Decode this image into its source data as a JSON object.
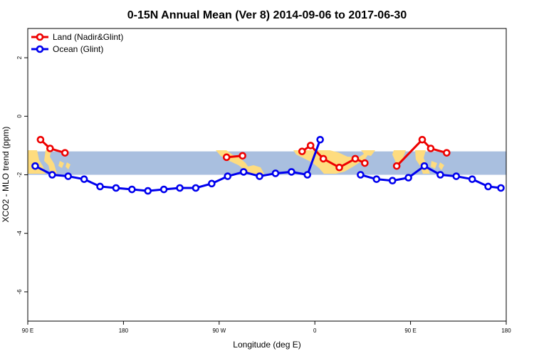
{
  "chart_data": {
    "type": "line",
    "title": "0-15N Annual Mean (Ver 8)   2014-09-06 to 2017-06-30",
    "xlabel": "Longitude (deg E)",
    "ylabel": "XCO2 - MLO trend (ppm)",
    "xlim": [
      90,
      540
    ],
    "ylim": [
      -7,
      3
    ],
    "x_ticks": [
      {
        "value": 90,
        "label": "90 E"
      },
      {
        "value": 180,
        "label": "180"
      },
      {
        "value": 270,
        "label": "90 W"
      },
      {
        "value": 360,
        "label": "0"
      },
      {
        "value": 450,
        "label": "90 E"
      },
      {
        "value": 540,
        "label": "180"
      }
    ],
    "y_ticks": [
      {
        "value": -6,
        "label": "-6"
      },
      {
        "value": -4,
        "label": "-4"
      },
      {
        "value": -2,
        "label": "-2"
      },
      {
        "value": 0,
        "label": "0"
      },
      {
        "value": 2,
        "label": "2"
      }
    ],
    "band": {
      "y_min": -2.0,
      "y_max": -1.2,
      "color": "#a9bfdf"
    },
    "land_color": "#fedc7f",
    "legend_position": "top-left",
    "series": [
      {
        "name": "Land (Nadir&Glint)",
        "color": "#ee0000",
        "segments": [
          [
            [
              102,
              -0.8
            ],
            [
              111,
              -1.1
            ],
            [
              125,
              -1.25
            ]
          ],
          [
            [
              277,
              -1.4
            ],
            [
              292,
              -1.35
            ]
          ],
          [
            [
              348,
              -1.2
            ],
            [
              356,
              -1.0
            ],
            [
              368,
              -1.45
            ],
            [
              383,
              -1.75
            ],
            [
              398,
              -1.45
            ],
            [
              407,
              -1.6
            ]
          ],
          [
            [
              437,
              -1.7
            ],
            [
              461,
              -0.8
            ],
            [
              469,
              -1.1
            ],
            [
              484,
              -1.25
            ]
          ]
        ]
      },
      {
        "name": "Ocean (Glint)",
        "color": "#0000ee",
        "segments": [
          [
            [
              97,
              -1.7
            ],
            [
              113,
              -2.0
            ],
            [
              128,
              -2.05
            ],
            [
              143,
              -2.15
            ],
            [
              158,
              -2.4
            ],
            [
              173,
              -2.45
            ],
            [
              188,
              -2.5
            ],
            [
              203,
              -2.55
            ],
            [
              218,
              -2.5
            ],
            [
              233,
              -2.45
            ],
            [
              248,
              -2.45
            ],
            [
              263,
              -2.3
            ],
            [
              278,
              -2.05
            ],
            [
              293,
              -1.9
            ],
            [
              308,
              -2.05
            ],
            [
              323,
              -1.95
            ],
            [
              338,
              -1.9
            ],
            [
              353,
              -2.0
            ],
            [
              365,
              -0.8
            ]
          ],
          [
            [
              403,
              -2.0
            ],
            [
              418,
              -2.15
            ],
            [
              433,
              -2.2
            ],
            [
              448,
              -2.1
            ],
            [
              463,
              -1.7
            ],
            [
              478,
              -2.0
            ],
            [
              493,
              -2.05
            ],
            [
              508,
              -2.15
            ],
            [
              523,
              -2.4
            ],
            [
              535,
              -2.45
            ]
          ]
        ]
      }
    ]
  }
}
